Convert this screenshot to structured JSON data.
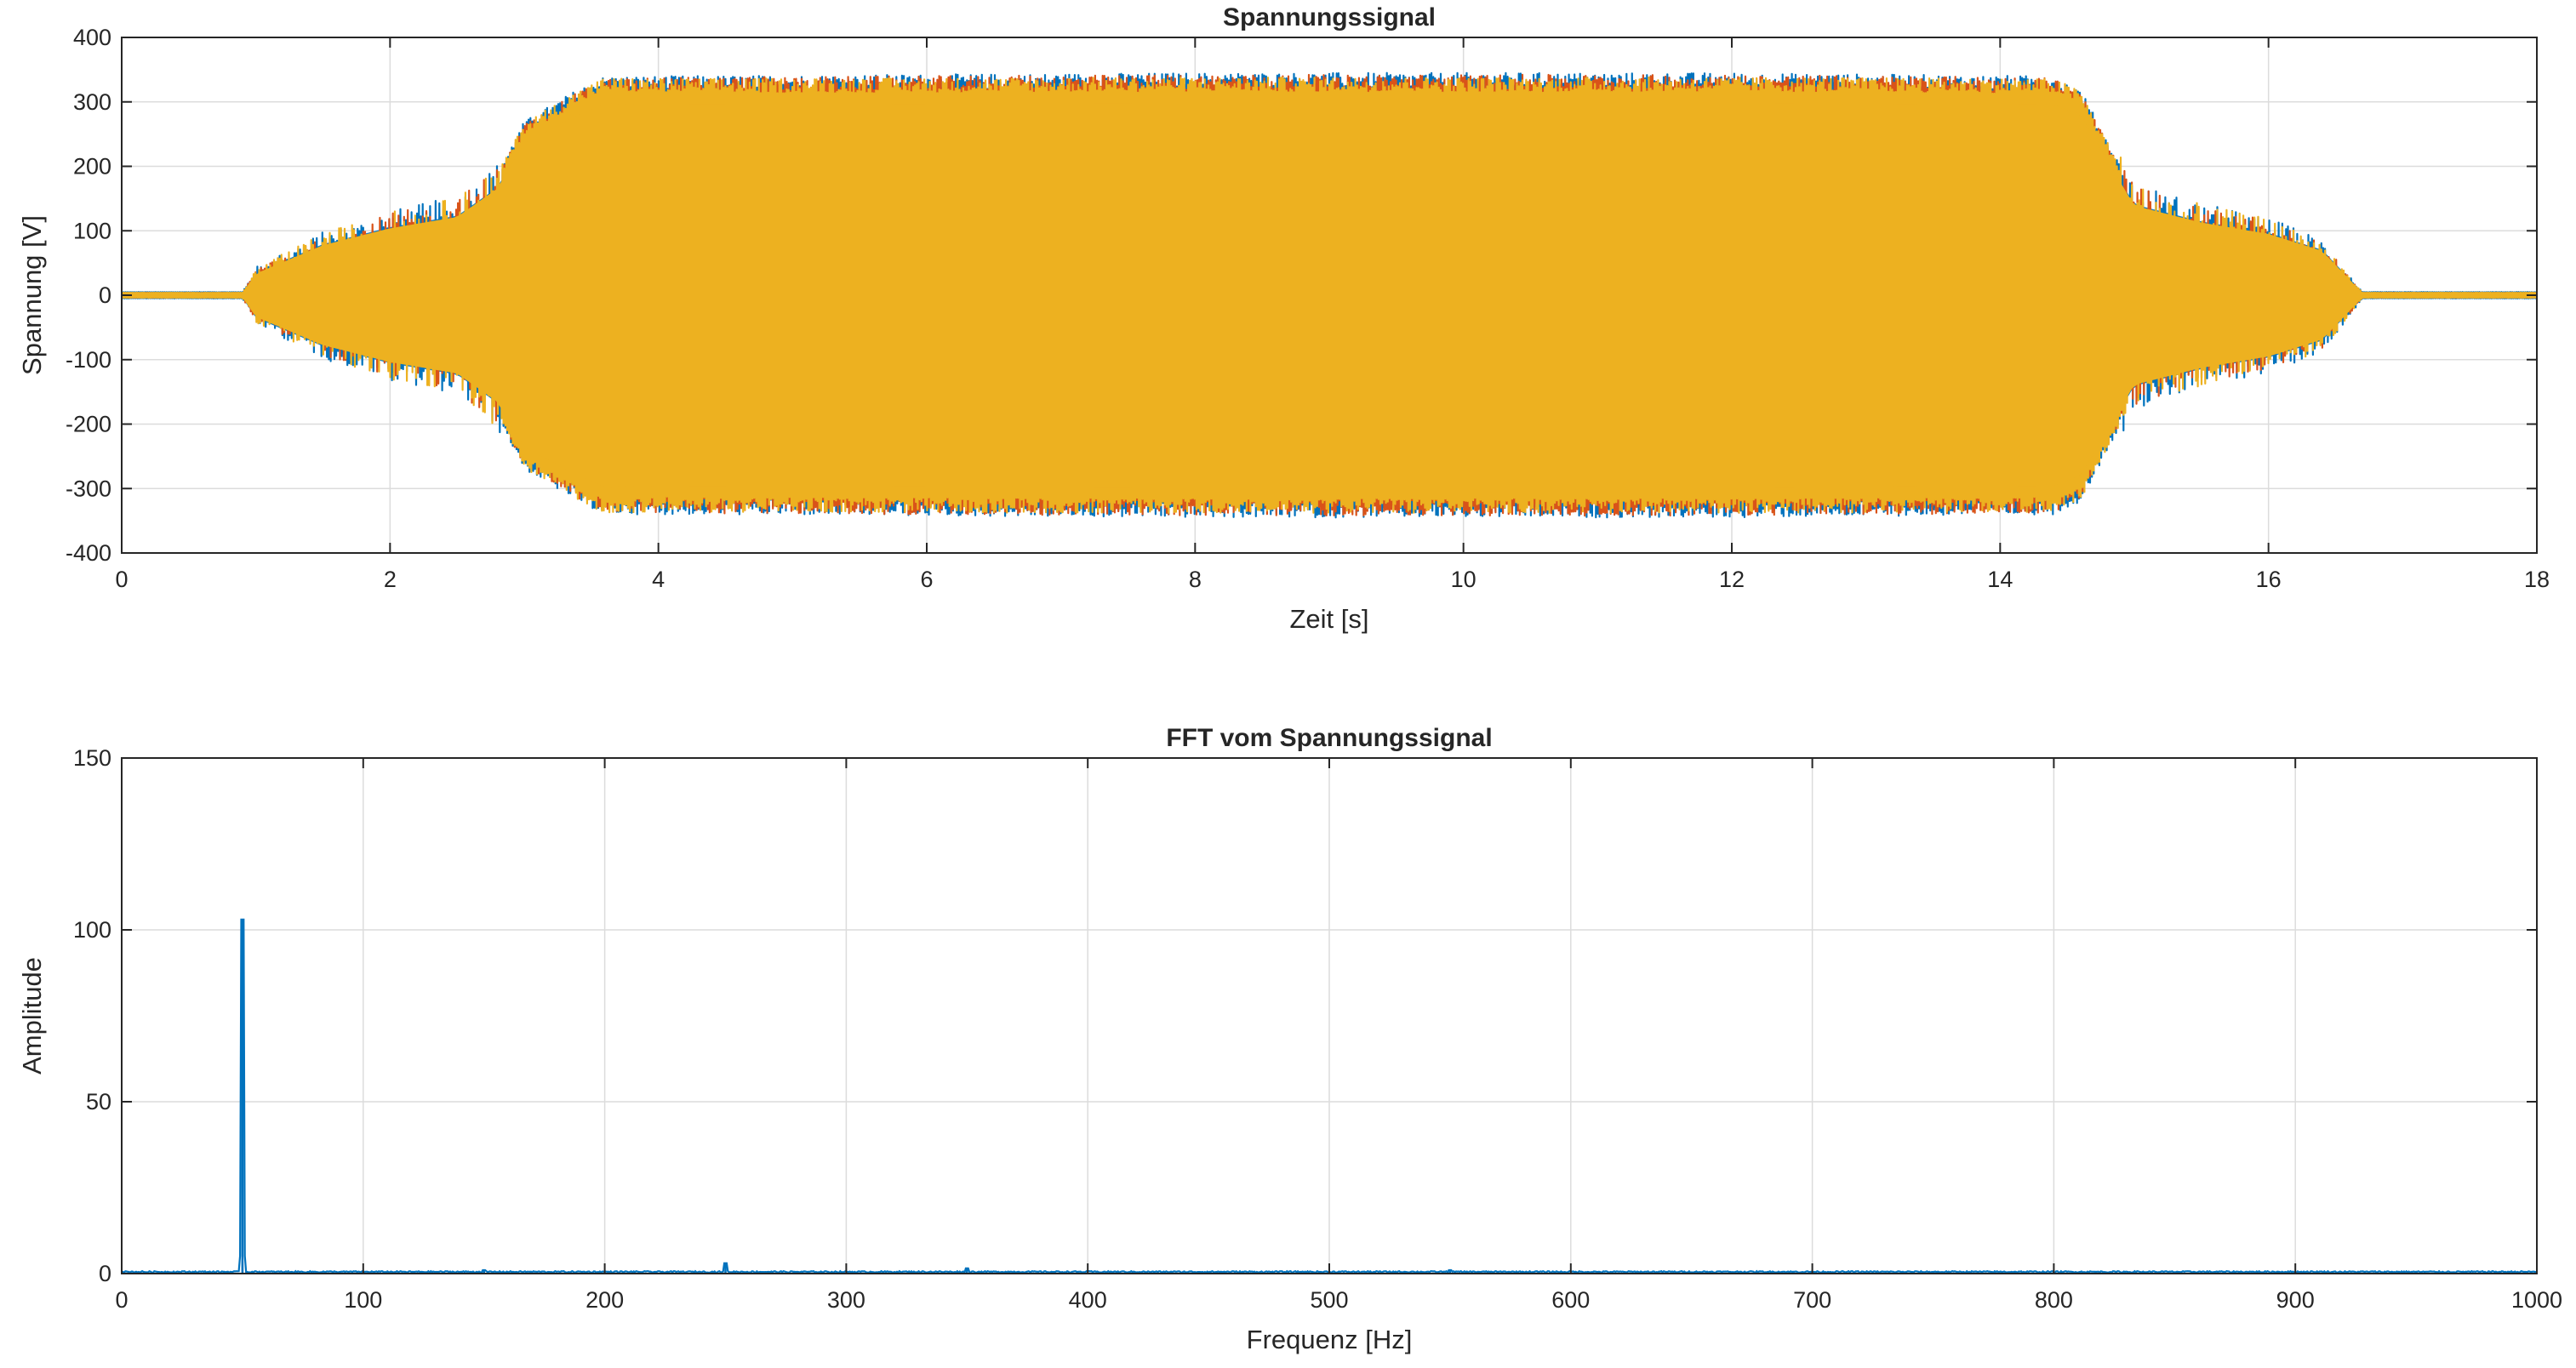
{
  "figure": {
    "background": "#ffffff",
    "plot_background": "#ffffff",
    "grid_color": "#dcdcdc",
    "axis_color": "#262626"
  },
  "chart_data": [
    {
      "type": "line",
      "title": "Spannungssignal",
      "xlabel": "Zeit [s]",
      "ylabel": "Spannung [V]",
      "xlim": [
        0,
        18
      ],
      "ylim": [
        -400,
        400
      ],
      "xticks": [
        0,
        2,
        4,
        6,
        8,
        10,
        12,
        14,
        16,
        18
      ],
      "xtick_labels": [
        "0",
        "2",
        "4",
        "6",
        "8",
        "10",
        "12",
        "14",
        "16",
        "18"
      ],
      "yticks": [
        400,
        300,
        200,
        100,
        0,
        -100,
        -200,
        -300,
        -400
      ],
      "ytick_labels": [
        "400",
        "300",
        "200",
        "100",
        "0",
        "-100",
        "-200",
        "-300",
        "-400"
      ],
      "grid": true,
      "legend": "none",
      "series": [
        {
          "color": "#0072BD",
          "envelope_t": [
            0,
            0.9,
            1.0,
            1.5,
            2.0,
            2.5,
            2.8,
            3.0,
            3.4,
            3.6,
            4.0,
            8.0,
            12.0,
            14.4,
            14.6,
            15.0,
            15.5,
            16.0,
            16.4,
            16.7,
            18.0
          ],
          "envelope_amp": [
            5,
            5,
            40,
            90,
            120,
            140,
            190,
            270,
            320,
            340,
            340,
            345,
            345,
            340,
            320,
            160,
            130,
            110,
            80,
            5,
            5
          ]
        },
        {
          "color": "#D95319",
          "envelope_t": [
            0,
            0.9,
            1.0,
            1.5,
            2.0,
            2.5,
            2.8,
            3.0,
            3.4,
            3.6,
            4.0,
            8.0,
            12.0,
            14.4,
            14.6,
            15.0,
            15.5,
            16.0,
            16.4,
            16.7,
            18.0
          ],
          "envelope_amp": [
            4,
            4,
            35,
            85,
            115,
            135,
            185,
            265,
            315,
            335,
            338,
            342,
            342,
            338,
            315,
            155,
            125,
            105,
            75,
            4,
            4
          ]
        },
        {
          "color": "#EDB120",
          "envelope_t": [
            0,
            0.9,
            1.0,
            1.5,
            2.0,
            2.5,
            2.8,
            3.0,
            3.4,
            3.6,
            4.0,
            8.0,
            12.0,
            14.4,
            14.6,
            15.0,
            15.5,
            16.0,
            16.4,
            16.7,
            18.0
          ],
          "envelope_amp": [
            4,
            4,
            38,
            88,
            118,
            138,
            188,
            268,
            318,
            338,
            336,
            338,
            338,
            336,
            318,
            158,
            128,
            108,
            78,
            4,
            4
          ]
        }
      ]
    },
    {
      "type": "line",
      "title": "FFT vom Spannungssignal",
      "xlabel": "Frequenz [Hz]",
      "ylabel": "Amplitude",
      "xlim": [
        0,
        1000
      ],
      "ylim": [
        0,
        150
      ],
      "xticks": [
        0,
        100,
        200,
        300,
        400,
        500,
        600,
        700,
        800,
        900,
        1000
      ],
      "xtick_labels": [
        "0",
        "100",
        "200",
        "300",
        "400",
        "500",
        "600",
        "700",
        "800",
        "900",
        "1000"
      ],
      "yticks": [
        150,
        100,
        50,
        0
      ],
      "ytick_labels": [
        "150",
        "100",
        "50",
        "0"
      ],
      "grid": true,
      "legend": "none",
      "series": [
        {
          "color": "#0072BD",
          "baseline": 0.5,
          "peaks": [
            {
              "x": 50,
              "y": 103
            },
            {
              "x": 150,
              "y": 1.0
            },
            {
              "x": 250,
              "y": 3.0
            },
            {
              "x": 350,
              "y": 1.5
            },
            {
              "x": 550,
              "y": 1.0
            }
          ]
        }
      ]
    }
  ]
}
